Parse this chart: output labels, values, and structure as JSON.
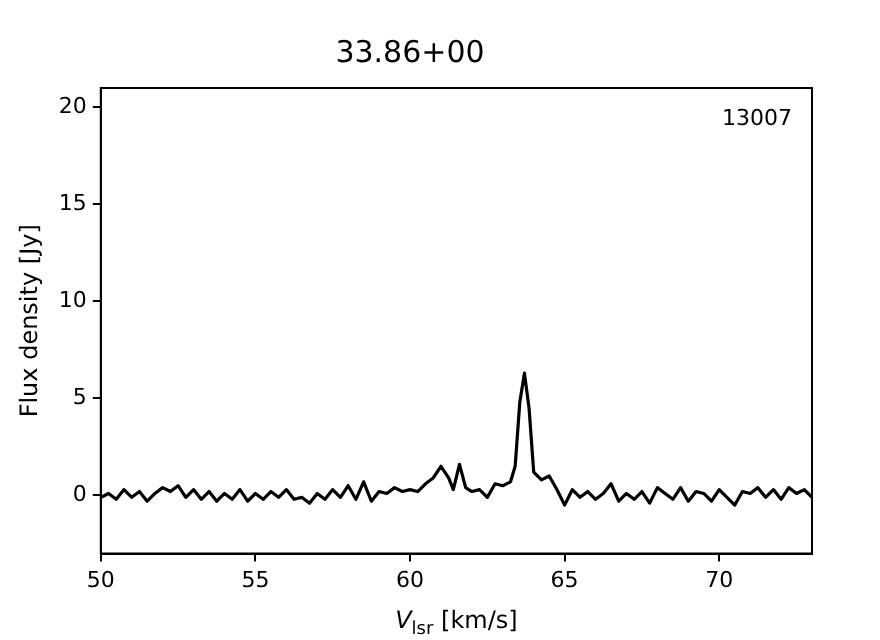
{
  "chart_data": {
    "type": "line",
    "title": "33.86+00",
    "xlabel": "V$_{lsr}$ [km/s]",
    "ylabel": "Flux density [Jy]",
    "annotations": [
      "13007"
    ],
    "x": [
      50,
      50.25,
      50.5,
      50.75,
      51,
      51.25,
      51.5,
      51.75,
      52,
      52.25,
      52.5,
      52.75,
      53,
      53.25,
      53.5,
      53.75,
      54,
      54.25,
      54.5,
      54.75,
      55,
      55.25,
      55.5,
      55.75,
      56,
      56.25,
      56.5,
      56.75,
      57,
      57.25,
      57.5,
      57.75,
      58,
      58.25,
      58.5,
      58.75,
      59,
      59.25,
      59.5,
      59.75,
      60,
      60.25,
      60.5,
      60.75,
      61,
      61.25,
      61.4,
      61.6,
      61.8,
      62,
      62.25,
      62.5,
      62.75,
      63,
      63.25,
      63.4,
      63.55,
      63.7,
      63.85,
      64,
      64.25,
      64.5,
      64.75,
      65,
      65.25,
      65.5,
      65.75,
      66,
      66.25,
      66.5,
      66.75,
      67,
      67.25,
      67.5,
      67.75,
      68,
      68.25,
      68.5,
      68.75,
      69,
      69.25,
      69.5,
      69.75,
      70,
      70.25,
      70.5,
      70.75,
      71,
      71.25,
      71.5,
      71.75,
      72,
      72.25,
      72.5,
      72.75,
      73
    ],
    "series": [
      {
        "color": "#000000",
        "values": [
          -0.1,
          0.1,
          -0.2,
          0.3,
          -0.1,
          0.2,
          -0.3,
          0.1,
          0.4,
          0.2,
          0.5,
          -0.1,
          0.3,
          -0.2,
          0.2,
          -0.3,
          0.1,
          -0.2,
          0.3,
          -0.3,
          0.1,
          -0.2,
          0.2,
          -0.1,
          0.3,
          -0.2,
          -0.1,
          -0.4,
          0.1,
          -0.2,
          0.3,
          -0.1,
          0.5,
          -0.2,
          0.7,
          -0.3,
          0.2,
          0.1,
          0.4,
          0.2,
          0.3,
          0.2,
          0.6,
          0.9,
          1.5,
          0.9,
          0.3,
          1.6,
          0.4,
          0.2,
          0.3,
          -0.1,
          0.6,
          0.5,
          0.7,
          1.5,
          4.8,
          6.3,
          4.5,
          1.2,
          0.8,
          1.0,
          0.3,
          -0.5,
          0.3,
          -0.1,
          0.2,
          -0.2,
          0.1,
          0.6,
          -0.3,
          0.1,
          -0.2,
          0.2,
          -0.4,
          0.4,
          0.1,
          -0.2,
          0.4,
          -0.3,
          0.2,
          0.1,
          -0.3,
          0.3,
          -0.1,
          -0.5,
          0.2,
          0.1,
          0.4,
          -0.1,
          0.3,
          -0.2,
          0.4,
          0.1,
          0.3,
          -0.1
        ]
      }
    ],
    "xlim": [
      50,
      73
    ],
    "xticks": [
      50,
      55,
      60,
      65,
      70
    ],
    "ylim": [
      -3,
      21
    ],
    "yticks": [
      0,
      5,
      10,
      15,
      20
    ],
    "grid": false,
    "legend": false,
    "marker": "none",
    "line_style": "solid"
  }
}
